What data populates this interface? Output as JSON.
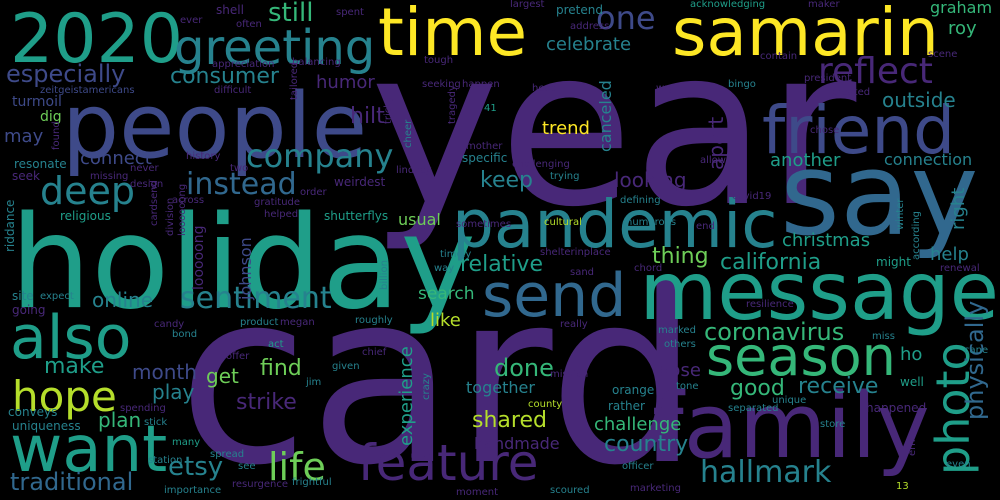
{
  "palette": {
    "background": "#000000",
    "deep_purple": "#440154",
    "purple": "#482878",
    "indigo": "#3e4a89",
    "blue": "#31688e",
    "teal": "#26828e",
    "sea": "#1f9e89",
    "green": "#35b779",
    "lime": "#6ece58",
    "yellowgreen": "#b5de2b",
    "yellow": "#fde725"
  },
  "words": [
    "year",
    "card",
    "holiday",
    "say",
    "message",
    "people",
    "family",
    "pandemic",
    "time",
    "samarin",
    "friend",
    "2020",
    "send",
    "feature",
    "want",
    "also",
    "season",
    "greeting",
    "photo",
    "hope",
    "deep",
    "life",
    "hallmark",
    "sentiment",
    "reflect",
    "company",
    "one",
    "especially",
    "instead",
    "physically",
    "consumer",
    "still",
    "california",
    "coronavirus",
    "etsy",
    "christmas",
    "keep",
    "done",
    "make",
    "relative",
    "hilt",
    "traditional",
    "thing",
    "outside",
    "strike",
    "shared",
    "experience",
    "country",
    "receive",
    "online",
    "month",
    "good",
    "find",
    "plan",
    "get",
    "play",
    "looking",
    "challenge",
    "trend",
    "like",
    "search",
    "apart",
    "celebrate",
    "canceled",
    "together",
    "connect",
    "may",
    "humor",
    "roy",
    "graham",
    "right",
    "help",
    "another",
    "connection",
    "pose",
    "ho",
    "handmade",
    "usual",
    "johnson",
    "looooong",
    "zeitgeistamericans",
    "turmoil",
    "dig",
    "resonate",
    "seek",
    "riddance",
    "site",
    "going",
    "conveys",
    "uniqueness",
    "importance",
    "station",
    "many",
    "spending",
    "stick",
    "candy",
    "bond",
    "product",
    "megan",
    "act",
    "offer",
    "see",
    "spread",
    "resurgence",
    "frightful",
    "moment",
    "scoured",
    "marketing",
    "officer",
    "13",
    "even",
    "well",
    "happened",
    "store",
    "separated",
    "unique",
    "tone",
    "orange",
    "rather",
    "county",
    "mission",
    "chief",
    "crazy",
    "given",
    "jim",
    "roughly",
    "expect",
    "really",
    "sand",
    "billion",
    "timely",
    "way",
    "chord",
    "renewal",
    "resilience",
    "miss",
    "others",
    "marked",
    "might",
    "cane",
    "winter",
    "according",
    "allow",
    "chose",
    "created",
    "president",
    "scene",
    "maker",
    "acknowledging",
    "wry",
    "bingo",
    "contain",
    "largest",
    "pretend",
    "tough",
    "address",
    "seeking",
    "happen",
    "head",
    "tragedy",
    "41",
    "mother",
    "specific",
    "challenging",
    "cultural",
    "trying",
    "defining",
    "numerous",
    "covid19",
    "end",
    "shelterinplace",
    "sometimes",
    "lindsey",
    "cheer",
    "weirdest",
    "tricky",
    "spent",
    "shell",
    "ever",
    "often",
    "appreciation",
    "difficult",
    "balancing",
    "tailored",
    "two",
    "history",
    "never",
    "missing",
    "design",
    "found",
    "across",
    "gratitude",
    "helped",
    "order",
    "shutterflys",
    "religious",
    "cardsend",
    "division",
    "loooooong",
    "ern"
  ]
}
